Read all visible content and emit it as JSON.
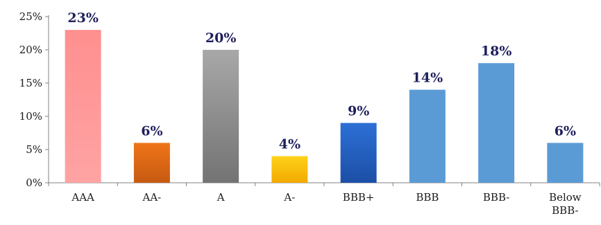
{
  "chart_data": {
    "type": "bar",
    "categories": [
      "AAA",
      "AA-",
      "A",
      "A-",
      "BBB+",
      "BBB",
      "BBB-",
      "Below BBB-"
    ],
    "values": [
      23,
      6,
      20,
      4,
      9,
      14,
      18,
      6
    ],
    "value_labels": [
      "23%",
      "6%",
      "20%",
      "4%",
      "9%",
      "14%",
      "18%",
      "6%"
    ],
    "ylim": [
      0,
      25
    ],
    "yticks": [
      0,
      5,
      10,
      15,
      20,
      25
    ],
    "ytick_labels": [
      "0%",
      "5%",
      "10%",
      "15%",
      "20%",
      "25%"
    ],
    "grid": false,
    "title": "",
    "xlabel": "",
    "ylabel": "",
    "bar_colors": [
      [
        "#ff8f8f",
        "#ffa3a3"
      ],
      [
        "#ef7418",
        "#c65a12"
      ],
      [
        "#a8a8a8",
        "#737373"
      ],
      [
        "#ffd21a",
        "#f2a900"
      ],
      [
        "#2d6fd6",
        "#1c4fa6"
      ],
      [
        "#5b9bd5",
        "#5b9bd5"
      ],
      [
        "#5b9bd5",
        "#5b9bd5"
      ],
      [
        "#5b9bd5",
        "#5b9bd5"
      ]
    ],
    "axis_color": "#808080",
    "label_color": "#1f1f5c"
  }
}
